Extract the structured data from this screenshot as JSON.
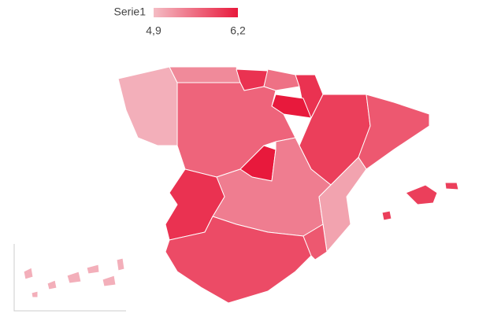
{
  "chart_data": {
    "type": "choropleth",
    "legend_title": "Serie1",
    "colorscale": {
      "range": [
        4.9,
        6.2
      ],
      "colors": [
        "#f4bcc4",
        "#e8193c"
      ],
      "ticks": [
        {
          "value": 4.9,
          "label": "4,9"
        },
        {
          "value": 6.2,
          "label": "6,2"
        }
      ]
    },
    "values": [
      5.0,
      5.3,
      6.0,
      5.5,
      6.0,
      6.2,
      5.6,
      5.9,
      5.7,
      6.2,
      5.4,
      5.1,
      6.0,
      5.8,
      5.7,
      5.9,
      5.0
    ]
  }
}
